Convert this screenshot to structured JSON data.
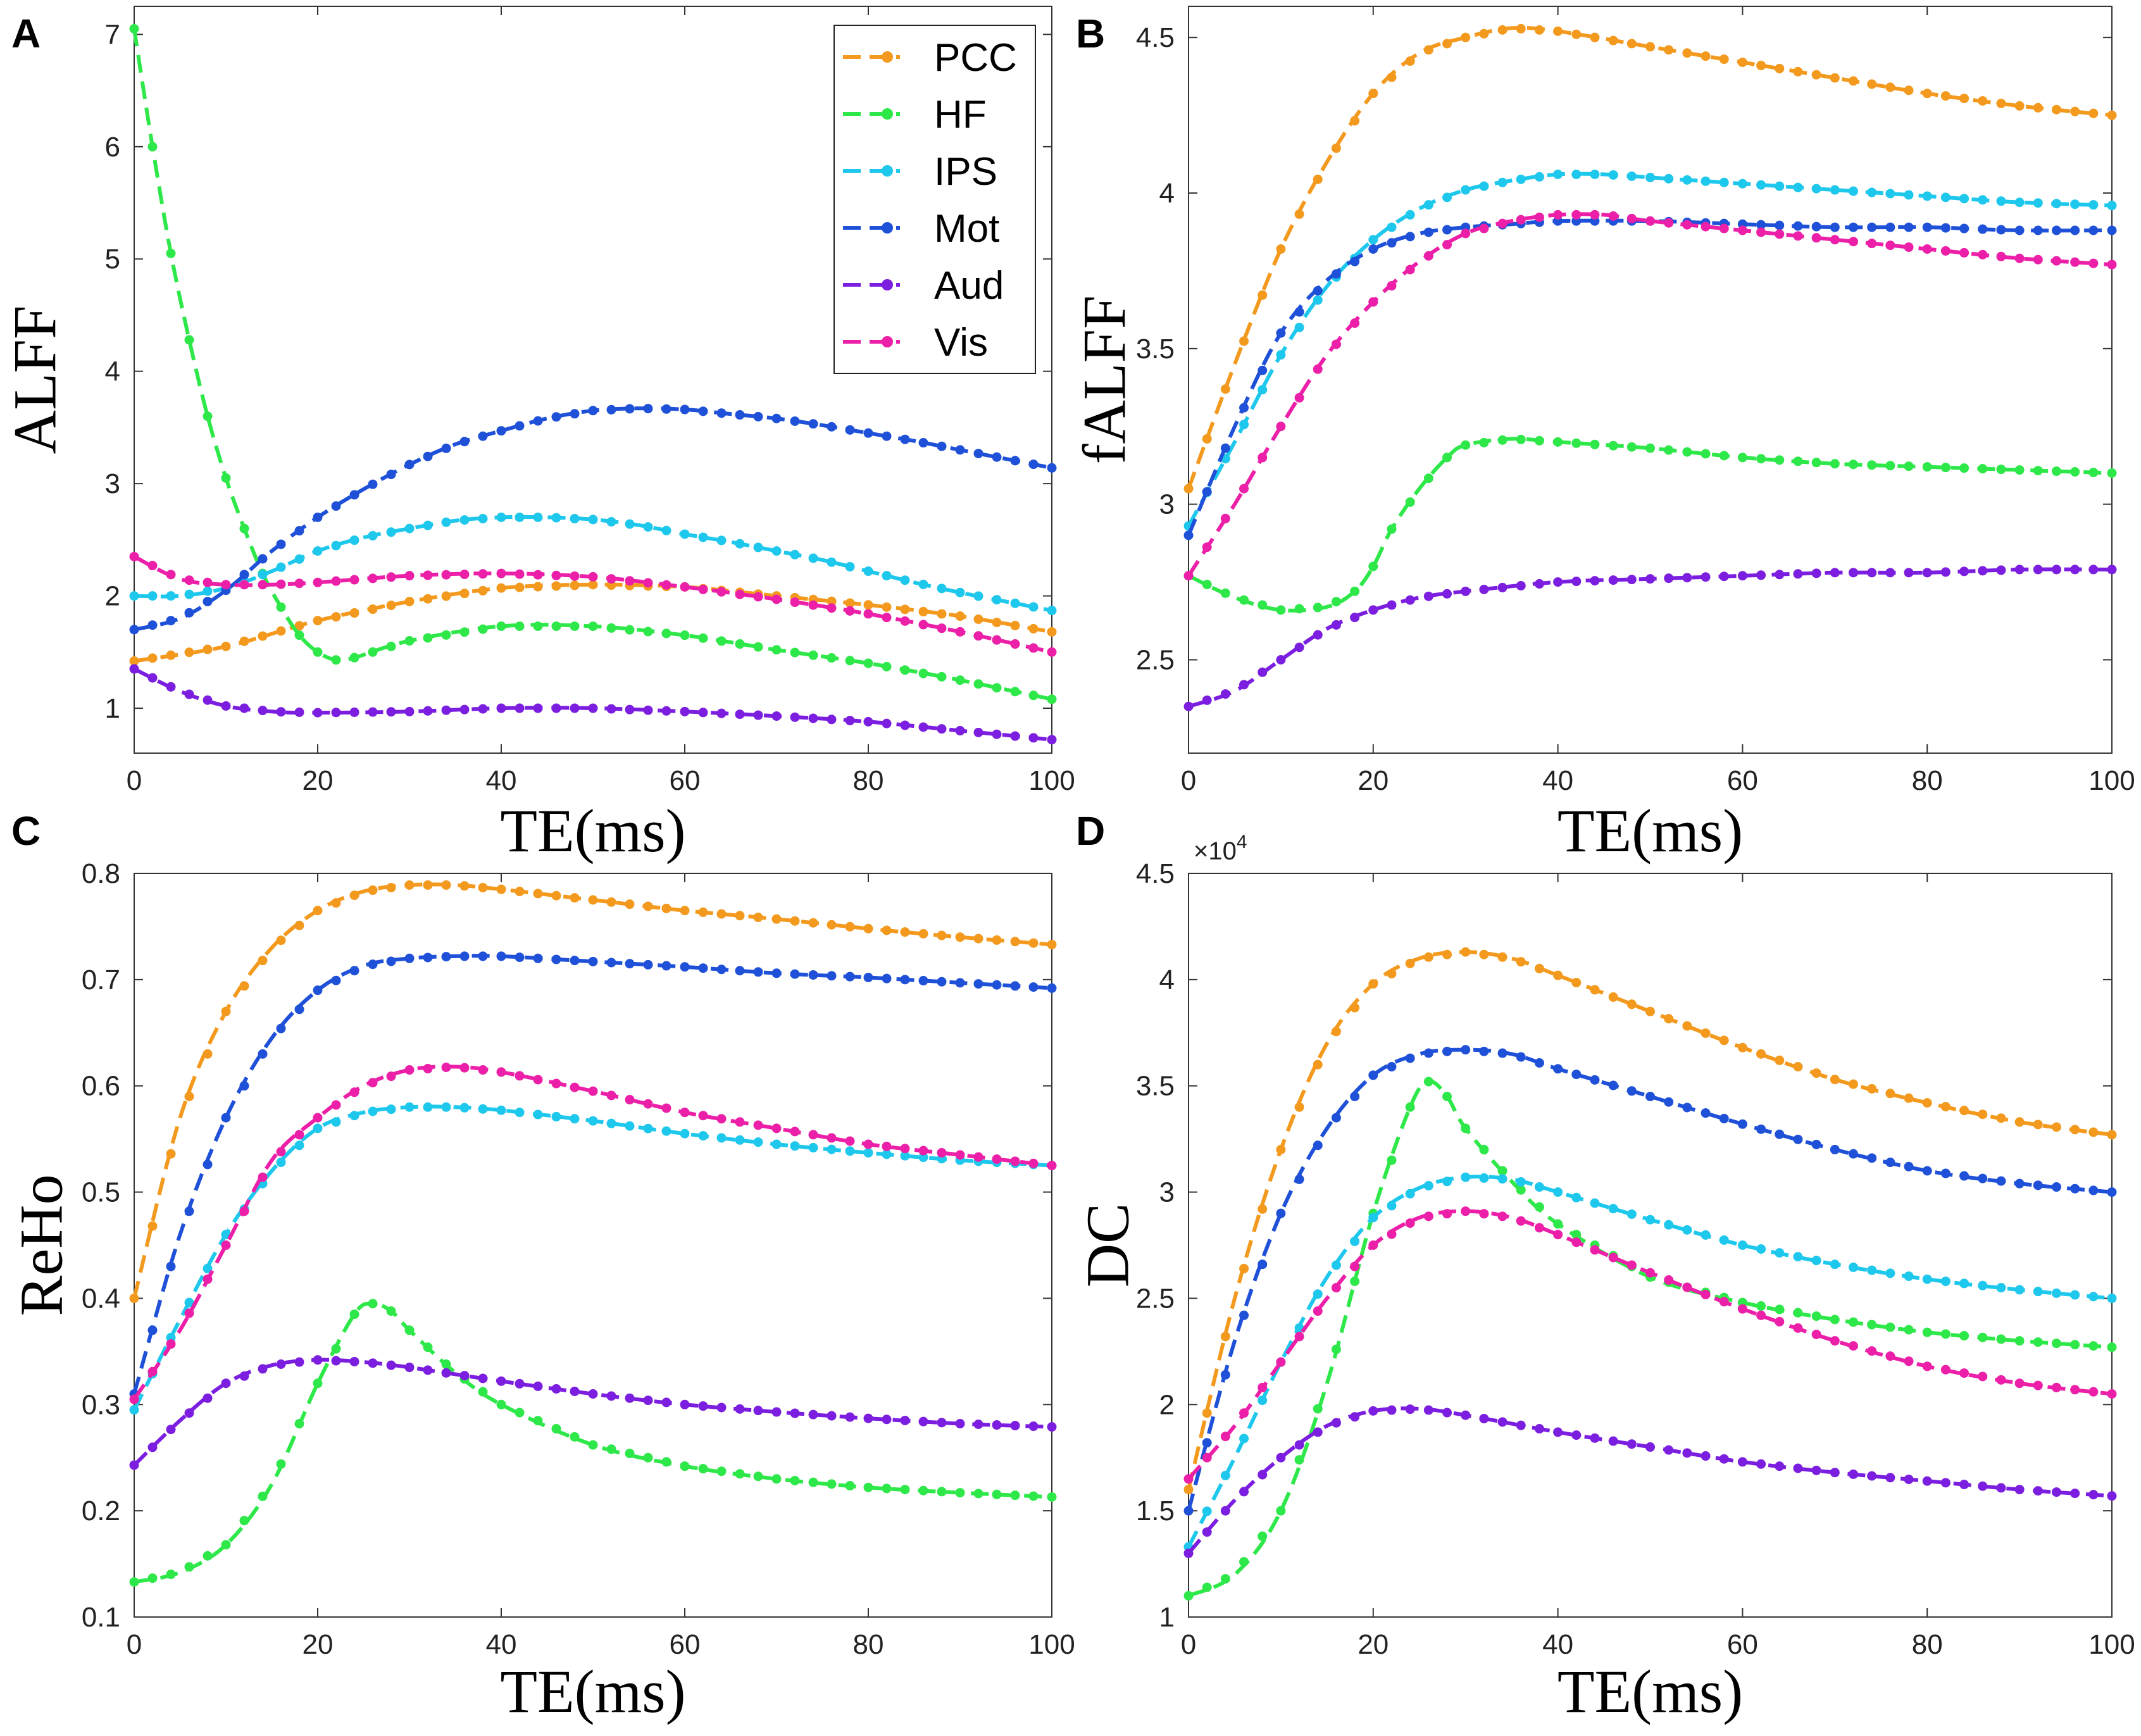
{
  "figure": {
    "legend": [
      {
        "name": "PCC",
        "color": "#f39a1e"
      },
      {
        "name": "HF",
        "color": "#2ee84a"
      },
      {
        "name": "IPS",
        "color": "#1ec8ec"
      },
      {
        "name": "Mot",
        "color": "#1f50d8"
      },
      {
        "name": "Aud",
        "color": "#7b1ee0"
      },
      {
        "name": "Vis",
        "color": "#ec1fa8"
      }
    ]
  },
  "chart_data": [
    {
      "panel": "A",
      "type": "line",
      "xlabel": "TE(ms)",
      "ylabel": "ALFF",
      "exponent_label": "",
      "xlim": [
        0,
        100
      ],
      "ylim": [
        0.6,
        7.25
      ],
      "xticks": [
        0,
        20,
        40,
        60,
        80,
        100
      ],
      "xtick_labels": [
        "0",
        "20",
        "40",
        "60",
        "80",
        "100"
      ],
      "yticks": [
        1,
        2,
        3,
        4,
        5,
        6,
        7
      ],
      "ytick_labels": [
        "1",
        "2",
        "3",
        "4",
        "5",
        "6",
        "7"
      ],
      "legend_position": "top-right",
      "series": [
        {
          "name": "PCC",
          "color": "#f39a1e",
          "x": [
            0,
            10,
            20,
            30,
            40,
            50,
            60,
            70,
            80,
            90,
            100
          ],
          "y": [
            1.42,
            1.55,
            1.78,
            1.95,
            2.07,
            2.1,
            2.08,
            2.0,
            1.92,
            1.82,
            1.68
          ]
        },
        {
          "name": "HF",
          "color": "#2ee84a",
          "x": [
            0,
            2,
            4,
            6,
            8,
            10,
            12,
            14,
            16,
            18,
            20,
            22,
            24,
            30,
            40,
            50,
            60,
            70,
            80,
            90,
            100
          ],
          "y": [
            7.05,
            6.0,
            5.05,
            4.28,
            3.6,
            3.05,
            2.6,
            2.2,
            1.9,
            1.65,
            1.5,
            1.43,
            1.45,
            1.6,
            1.73,
            1.73,
            1.65,
            1.52,
            1.4,
            1.25,
            1.08
          ]
        },
        {
          "name": "IPS",
          "color": "#1ec8ec",
          "x": [
            0,
            5,
            10,
            15,
            20,
            25,
            30,
            35,
            40,
            45,
            50,
            55,
            60,
            65,
            70,
            75,
            80,
            85,
            90,
            95,
            100
          ],
          "y": [
            2.0,
            2.0,
            2.07,
            2.22,
            2.4,
            2.52,
            2.6,
            2.67,
            2.7,
            2.7,
            2.68,
            2.63,
            2.55,
            2.48,
            2.4,
            2.32,
            2.22,
            2.12,
            2.03,
            1.95,
            1.87
          ]
        },
        {
          "name": "Mot",
          "color": "#1f50d8",
          "x": [
            0,
            5,
            10,
            15,
            20,
            25,
            30,
            35,
            40,
            45,
            50,
            55,
            60,
            65,
            70,
            75,
            80,
            85,
            90,
            95,
            100
          ],
          "y": [
            1.7,
            1.8,
            2.05,
            2.4,
            2.7,
            2.95,
            3.17,
            3.35,
            3.47,
            3.58,
            3.65,
            3.67,
            3.66,
            3.62,
            3.58,
            3.52,
            3.45,
            3.38,
            3.3,
            3.22,
            3.14
          ]
        },
        {
          "name": "Aud",
          "color": "#7b1ee0",
          "x": [
            0,
            5,
            10,
            15,
            20,
            30,
            40,
            50,
            60,
            70,
            80,
            90,
            100
          ],
          "y": [
            1.35,
            1.15,
            1.02,
            0.97,
            0.96,
            0.97,
            1.0,
            1.0,
            0.97,
            0.93,
            0.88,
            0.8,
            0.72
          ]
        },
        {
          "name": "Vis",
          "color": "#ec1fa8",
          "x": [
            0,
            5,
            10,
            15,
            20,
            30,
            40,
            50,
            60,
            70,
            80,
            90,
            100
          ],
          "y": [
            2.35,
            2.15,
            2.1,
            2.1,
            2.12,
            2.18,
            2.2,
            2.17,
            2.08,
            1.97,
            1.84,
            1.68,
            1.5
          ]
        }
      ]
    },
    {
      "panel": "B",
      "type": "line",
      "xlabel": "TE(ms)",
      "ylabel": "fALFF",
      "exponent_label": "",
      "xlim": [
        0,
        100
      ],
      "ylim": [
        2.2,
        4.6
      ],
      "xticks": [
        0,
        20,
        40,
        60,
        80,
        100
      ],
      "xtick_labels": [
        "0",
        "20",
        "40",
        "60",
        "80",
        "100"
      ],
      "yticks": [
        2.5,
        3.0,
        3.5,
        4.0,
        4.5
      ],
      "ytick_labels": [
        "2.5",
        "3",
        "3.5",
        "4",
        "4.5"
      ],
      "series": [
        {
          "name": "PCC",
          "color": "#f39a1e",
          "x": [
            0,
            5,
            10,
            15,
            20,
            25,
            30,
            35,
            40,
            50,
            60,
            70,
            80,
            90,
            100
          ],
          "y": [
            3.05,
            3.45,
            3.82,
            4.1,
            4.32,
            4.45,
            4.5,
            4.53,
            4.52,
            4.47,
            4.42,
            4.37,
            4.32,
            4.28,
            4.25
          ]
        },
        {
          "name": "HF",
          "color": "#2ee84a",
          "x": [
            0,
            5,
            10,
            15,
            18,
            20,
            22,
            25,
            28,
            30,
            35,
            40,
            50,
            60,
            70,
            80,
            90,
            100
          ],
          "y": [
            2.77,
            2.7,
            2.66,
            2.67,
            2.72,
            2.8,
            2.92,
            3.05,
            3.15,
            3.19,
            3.21,
            3.2,
            3.18,
            3.15,
            3.13,
            3.12,
            3.11,
            3.1
          ]
        },
        {
          "name": "IPS",
          "color": "#1ec8ec",
          "x": [
            0,
            5,
            10,
            15,
            20,
            25,
            30,
            35,
            40,
            45,
            50,
            60,
            70,
            80,
            90,
            100
          ],
          "y": [
            2.93,
            3.2,
            3.48,
            3.7,
            3.85,
            3.95,
            4.01,
            4.04,
            4.06,
            4.06,
            4.05,
            4.03,
            4.01,
            3.99,
            3.97,
            3.96
          ]
        },
        {
          "name": "Mot",
          "color": "#1f50d8",
          "x": [
            0,
            5,
            10,
            15,
            20,
            25,
            30,
            35,
            40,
            50,
            60,
            70,
            80,
            90,
            100
          ],
          "y": [
            2.9,
            3.25,
            3.55,
            3.72,
            3.82,
            3.87,
            3.89,
            3.9,
            3.91,
            3.91,
            3.9,
            3.89,
            3.89,
            3.88,
            3.88
          ]
        },
        {
          "name": "Aud",
          "color": "#7b1ee0",
          "x": [
            0,
            5,
            10,
            15,
            20,
            25,
            30,
            40,
            50,
            60,
            70,
            80,
            90,
            100
          ],
          "y": [
            2.35,
            2.4,
            2.5,
            2.6,
            2.66,
            2.7,
            2.72,
            2.75,
            2.76,
            2.77,
            2.78,
            2.78,
            2.79,
            2.79
          ]
        },
        {
          "name": "Vis",
          "color": "#ec1fa8",
          "x": [
            0,
            5,
            10,
            15,
            20,
            25,
            30,
            35,
            40,
            45,
            50,
            60,
            70,
            80,
            90,
            100
          ],
          "y": [
            2.77,
            3.0,
            3.25,
            3.48,
            3.65,
            3.78,
            3.87,
            3.91,
            3.93,
            3.93,
            3.91,
            3.88,
            3.85,
            3.82,
            3.79,
            3.77
          ]
        }
      ]
    },
    {
      "panel": "C",
      "type": "line",
      "xlabel": "TE(ms)",
      "ylabel": "ReHo",
      "exponent_label": "",
      "xlim": [
        0,
        100
      ],
      "ylim": [
        0.1,
        0.8
      ],
      "xticks": [
        0,
        20,
        40,
        60,
        80,
        100
      ],
      "xtick_labels": [
        "0",
        "20",
        "40",
        "60",
        "80",
        "100"
      ],
      "yticks": [
        0.1,
        0.2,
        0.3,
        0.4,
        0.5,
        0.6,
        0.7,
        0.8
      ],
      "ytick_labels": [
        "0.1",
        "0.2",
        "0.3",
        "0.4",
        "0.5",
        "0.6",
        "0.7",
        "0.8"
      ],
      "series": [
        {
          "name": "PCC",
          "color": "#f39a1e",
          "x": [
            0,
            5,
            10,
            15,
            20,
            25,
            30,
            35,
            40,
            50,
            60,
            70,
            80,
            90,
            100
          ],
          "y": [
            0.4,
            0.57,
            0.67,
            0.73,
            0.765,
            0.783,
            0.789,
            0.789,
            0.785,
            0.775,
            0.765,
            0.757,
            0.748,
            0.74,
            0.733
          ]
        },
        {
          "name": "HF",
          "color": "#2ee84a",
          "x": [
            0,
            5,
            10,
            15,
            20,
            24,
            26,
            28,
            30,
            35,
            40,
            50,
            60,
            70,
            80,
            90,
            100
          ],
          "y": [
            0.133,
            0.142,
            0.168,
            0.225,
            0.32,
            0.385,
            0.395,
            0.388,
            0.37,
            0.33,
            0.3,
            0.262,
            0.242,
            0.23,
            0.222,
            0.217,
            0.213
          ]
        },
        {
          "name": "IPS",
          "color": "#1ec8ec",
          "x": [
            0,
            5,
            10,
            15,
            20,
            25,
            30,
            35,
            40,
            50,
            60,
            70,
            80,
            90,
            100
          ],
          "y": [
            0.295,
            0.38,
            0.46,
            0.52,
            0.56,
            0.575,
            0.58,
            0.58,
            0.577,
            0.567,
            0.555,
            0.545,
            0.537,
            0.53,
            0.525
          ]
        },
        {
          "name": "Mot",
          "color": "#1f50d8",
          "x": [
            0,
            5,
            10,
            15,
            20,
            25,
            30,
            35,
            40,
            50,
            60,
            70,
            80,
            90,
            100
          ],
          "y": [
            0.31,
            0.46,
            0.57,
            0.645,
            0.69,
            0.713,
            0.72,
            0.722,
            0.722,
            0.717,
            0.712,
            0.706,
            0.702,
            0.697,
            0.692
          ]
        },
        {
          "name": "Aud",
          "color": "#7b1ee0",
          "x": [
            0,
            5,
            10,
            15,
            20,
            25,
            30,
            40,
            50,
            60,
            70,
            80,
            90,
            100
          ],
          "y": [
            0.243,
            0.285,
            0.32,
            0.337,
            0.342,
            0.34,
            0.335,
            0.322,
            0.31,
            0.3,
            0.293,
            0.287,
            0.282,
            0.279
          ]
        },
        {
          "name": "Vis",
          "color": "#ec1fa8",
          "x": [
            0,
            5,
            10,
            15,
            20,
            25,
            30,
            35,
            40,
            50,
            60,
            70,
            80,
            90,
            100
          ],
          "y": [
            0.305,
            0.37,
            0.45,
            0.53,
            0.57,
            0.6,
            0.615,
            0.618,
            0.613,
            0.595,
            0.575,
            0.56,
            0.545,
            0.535,
            0.525
          ]
        }
      ]
    },
    {
      "panel": "D",
      "type": "line",
      "xlabel": "TE(ms)",
      "ylabel": "DC",
      "exponent_label": "×10",
      "exponent_power": "4",
      "xlim": [
        0,
        100
      ],
      "ylim": [
        1.0,
        4.5
      ],
      "xticks": [
        0,
        20,
        40,
        60,
        80,
        100
      ],
      "xtick_labels": [
        "0",
        "20",
        "40",
        "60",
        "80",
        "100"
      ],
      "yticks": [
        1.0,
        1.5,
        2.0,
        2.5,
        3.0,
        3.5,
        4.0,
        4.5
      ],
      "ytick_labels": [
        "1",
        "1.5",
        "2",
        "2.5",
        "3",
        "3.5",
        "4",
        "4.5"
      ],
      "series": [
        {
          "name": "PCC",
          "color": "#f39a1e",
          "x": [
            0,
            5,
            10,
            15,
            20,
            25,
            30,
            35,
            40,
            50,
            60,
            70,
            80,
            90,
            100
          ],
          "y": [
            1.6,
            2.5,
            3.2,
            3.7,
            3.98,
            4.1,
            4.13,
            4.1,
            4.02,
            3.85,
            3.68,
            3.53,
            3.42,
            3.33,
            3.27
          ]
        },
        {
          "name": "HF",
          "color": "#2ee84a",
          "x": [
            0,
            5,
            10,
            15,
            20,
            24,
            26,
            28,
            30,
            35,
            40,
            50,
            60,
            70,
            80,
            90,
            100
          ],
          "y": [
            1.1,
            1.2,
            1.5,
            2.1,
            2.9,
            3.4,
            3.52,
            3.45,
            3.3,
            3.05,
            2.85,
            2.6,
            2.48,
            2.4,
            2.34,
            2.3,
            2.27
          ]
        },
        {
          "name": "IPS",
          "color": "#1ec8ec",
          "x": [
            0,
            5,
            10,
            15,
            20,
            25,
            30,
            35,
            40,
            50,
            60,
            70,
            80,
            90,
            100
          ],
          "y": [
            1.33,
            1.75,
            2.2,
            2.6,
            2.88,
            3.02,
            3.07,
            3.06,
            3.0,
            2.87,
            2.75,
            2.66,
            2.59,
            2.54,
            2.5
          ]
        },
        {
          "name": "Mot",
          "color": "#1f50d8",
          "x": [
            0,
            5,
            10,
            15,
            20,
            25,
            30,
            35,
            40,
            50,
            60,
            70,
            80,
            90,
            100
          ],
          "y": [
            1.5,
            2.3,
            2.9,
            3.3,
            3.55,
            3.65,
            3.67,
            3.65,
            3.58,
            3.45,
            3.32,
            3.2,
            3.1,
            3.04,
            3.0
          ]
        },
        {
          "name": "Aud",
          "color": "#7b1ee0",
          "x": [
            0,
            5,
            10,
            15,
            20,
            25,
            30,
            40,
            50,
            60,
            70,
            80,
            90,
            100
          ],
          "y": [
            1.3,
            1.55,
            1.75,
            1.9,
            1.97,
            1.98,
            1.95,
            1.87,
            1.8,
            1.73,
            1.68,
            1.64,
            1.6,
            1.57
          ]
        },
        {
          "name": "Vis",
          "color": "#ec1fa8",
          "x": [
            0,
            5,
            10,
            15,
            20,
            25,
            30,
            35,
            40,
            50,
            60,
            70,
            80,
            90,
            100
          ],
          "y": [
            1.65,
            1.9,
            2.2,
            2.5,
            2.75,
            2.88,
            2.91,
            2.88,
            2.8,
            2.62,
            2.45,
            2.3,
            2.18,
            2.1,
            2.05
          ]
        }
      ]
    }
  ]
}
